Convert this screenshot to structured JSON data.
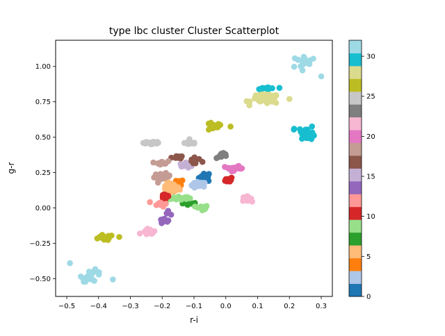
{
  "chart_data": {
    "type": "scatter",
    "title": "type lbc cluster Cluster Scatterplot",
    "xlabel": "r-i",
    "ylabel": "g-r",
    "xlim": [
      -0.535,
      0.335
    ],
    "ylim": [
      -0.625,
      1.185
    ],
    "xticks": [
      -0.5,
      -0.4,
      -0.3,
      -0.2,
      -0.1,
      0.0,
      0.1,
      0.2,
      0.3
    ],
    "xtick_labels": [
      "−0.5",
      "−0.4",
      "−0.3",
      "−0.2",
      "−0.1",
      "0.0",
      "0.1",
      "0.2",
      "0.3"
    ],
    "yticks": [
      -0.5,
      -0.25,
      0.0,
      0.25,
      0.5,
      0.75,
      1.0
    ],
    "ytick_labels": [
      "−0.50",
      "−0.25",
      "0.00",
      "0.25",
      "0.50",
      "0.75",
      "1.00"
    ],
    "grid": false,
    "colormap": "tab20",
    "colorbar": {
      "range": [
        0,
        32
      ],
      "ticks": [
        0,
        5,
        10,
        15,
        20,
        25,
        30
      ],
      "tick_labels": [
        "0",
        "5",
        "10",
        "15",
        "20",
        "25",
        "30"
      ],
      "colors": [
        "#1f77b4",
        "#aec7e8",
        "#ff7f0e",
        "#ffbb78",
        "#2ca02c",
        "#98df8a",
        "#d62728",
        "#ff9896",
        "#9467bd",
        "#c5b0d5",
        "#8c564b",
        "#c49c94",
        "#e377c2",
        "#f7b6d2",
        "#7f7f7f",
        "#c7c7c7",
        "#bcbd22",
        "#dbdb8d",
        "#17becf",
        "#9edae5"
      ]
    },
    "clusters": [
      {
        "id": 0,
        "color": "#1f77b4",
        "center": [
          -0.065,
          0.22
        ],
        "spread": [
          0.012,
          0.02
        ],
        "n": 22
      },
      {
        "id": 1,
        "color": "#aec7e8",
        "center": [
          -0.085,
          0.16
        ],
        "spread": [
          0.014,
          0.015
        ],
        "n": 22
      },
      {
        "id": 3,
        "color": "#ff7f0e",
        "center": [
          -0.145,
          0.18
        ],
        "spread": [
          0.007,
          0.012
        ],
        "n": 12
      },
      {
        "id": 7,
        "color": "#ffbb78",
        "center": [
          -0.175,
          0.14
        ],
        "spread": [
          0.018,
          0.025
        ],
        "n": 26
      },
      {
        "id": 9,
        "color": "#2ca02c",
        "center": [
          -0.115,
          0.03
        ],
        "spread": [
          0.015,
          0.008
        ],
        "n": 18
      },
      {
        "id": 10,
        "color": "#98df8a",
        "center": [
          -0.15,
          0.07
        ],
        "spread": [
          0.025,
          0.01
        ],
        "n": 22
      },
      {
        "id": 10,
        "color": "#98df8a",
        "center": [
          -0.075,
          0.0
        ],
        "spread": [
          0.012,
          0.012
        ],
        "n": 16
      },
      {
        "id": 11,
        "color": "#d62728",
        "center": [
          -0.19,
          0.08
        ],
        "spread": [
          0.01,
          0.018
        ],
        "n": 18
      },
      {
        "id": 11,
        "color": "#d62728",
        "center": [
          0.01,
          0.2
        ],
        "spread": [
          0.007,
          0.012
        ],
        "n": 12
      },
      {
        "id": 12,
        "color": "#ff9896",
        "center": [
          -0.205,
          0.03
        ],
        "spread": [
          0.012,
          0.012
        ],
        "n": 14
      },
      {
        "id": 14,
        "color": "#9467bd",
        "center": [
          -0.195,
          -0.085
        ],
        "spread": [
          0.008,
          0.012
        ],
        "n": 10
      },
      {
        "id": 14,
        "color": "#9467bd",
        "center": [
          -0.185,
          -0.035
        ],
        "spread": [
          0.006,
          0.008
        ],
        "n": 6
      },
      {
        "id": 15,
        "color": "#c5b0d5",
        "center": [
          -0.125,
          0.3
        ],
        "spread": [
          0.012,
          0.012
        ],
        "n": 12
      },
      {
        "id": 17,
        "color": "#8c564b",
        "center": [
          -0.155,
          0.36
        ],
        "spread": [
          0.01,
          0.008
        ],
        "n": 12
      },
      {
        "id": 17,
        "color": "#8c564b",
        "center": [
          -0.1,
          0.33
        ],
        "spread": [
          0.012,
          0.02
        ],
        "n": 12
      },
      {
        "id": 19,
        "color": "#c49c94",
        "center": [
          -0.2,
          0.32
        ],
        "spread": [
          0.012,
          0.008
        ],
        "n": 12
      },
      {
        "id": 19,
        "color": "#c49c94",
        "center": [
          -0.2,
          0.22
        ],
        "spread": [
          0.016,
          0.015
        ],
        "n": 18
      },
      {
        "id": 20,
        "color": "#e377c2",
        "center": [
          0.025,
          0.28
        ],
        "spread": [
          0.02,
          0.01
        ],
        "n": 24
      },
      {
        "id": 22,
        "color": "#f7b6d2",
        "center": [
          -0.24,
          -0.165
        ],
        "spread": [
          0.012,
          0.012
        ],
        "n": 18
      },
      {
        "id": 22,
        "color": "#f7b6d2",
        "center": [
          0.065,
          0.065
        ],
        "spread": [
          0.01,
          0.01
        ],
        "n": 14
      },
      {
        "id": 24,
        "color": "#7f7f7f",
        "center": [
          -0.01,
          0.37
        ],
        "spread": [
          0.012,
          0.012
        ],
        "n": 16
      },
      {
        "id": 25,
        "color": "#c7c7c7",
        "center": [
          -0.23,
          0.46
        ],
        "spread": [
          0.018,
          0.01
        ],
        "n": 22
      },
      {
        "id": 25,
        "color": "#c7c7c7",
        "center": [
          -0.11,
          0.46
        ],
        "spread": [
          0.012,
          0.01
        ],
        "n": 12
      },
      {
        "id": 27,
        "color": "#bcbd22",
        "center": [
          -0.385,
          -0.21
        ],
        "spread": [
          0.02,
          0.012
        ],
        "n": 16
      },
      {
        "id": 27,
        "color": "#bcbd22",
        "center": [
          -0.04,
          0.575
        ],
        "spread": [
          0.018,
          0.018
        ],
        "n": 16
      },
      {
        "id": 28,
        "color": "#dbdb8d",
        "center": [
          0.125,
          0.77
        ],
        "spread": [
          0.028,
          0.022
        ],
        "n": 44
      },
      {
        "id": 30,
        "color": "#17becf",
        "center": [
          0.13,
          0.845
        ],
        "spread": [
          0.02,
          0.007
        ],
        "n": 14
      },
      {
        "id": 30,
        "color": "#17becf",
        "center": [
          0.255,
          0.53
        ],
        "spread": [
          0.018,
          0.03
        ],
        "n": 22
      },
      {
        "id": 31,
        "color": "#9edae5",
        "center": [
          -0.42,
          -0.48
        ],
        "spread": [
          0.02,
          0.025
        ],
        "n": 22
      },
      {
        "id": 31,
        "color": "#9edae5",
        "center": [
          0.24,
          1.03
        ],
        "spread": [
          0.022,
          0.03
        ],
        "n": 16
      }
    ],
    "outliers": [
      {
        "x": -0.49,
        "y": -0.39,
        "color": "#9edae5"
      },
      {
        "x": -0.355,
        "y": -0.505,
        "color": "#9edae5"
      },
      {
        "x": 0.3,
        "y": 0.93,
        "color": "#9edae5"
      },
      {
        "x": 0.275,
        "y": 1.055,
        "color": "#9edae5"
      },
      {
        "x": -0.27,
        "y": -0.18,
        "color": "#f7b6d2"
      },
      {
        "x": -0.335,
        "y": -0.205,
        "color": "#bcbd22"
      },
      {
        "x": 0.015,
        "y": 0.575,
        "color": "#bcbd22"
      },
      {
        "x": 0.2,
        "y": 0.77,
        "color": "#dbdb8d"
      },
      {
        "x": 0.215,
        "y": 0.56,
        "color": "#17becf"
      }
    ]
  }
}
